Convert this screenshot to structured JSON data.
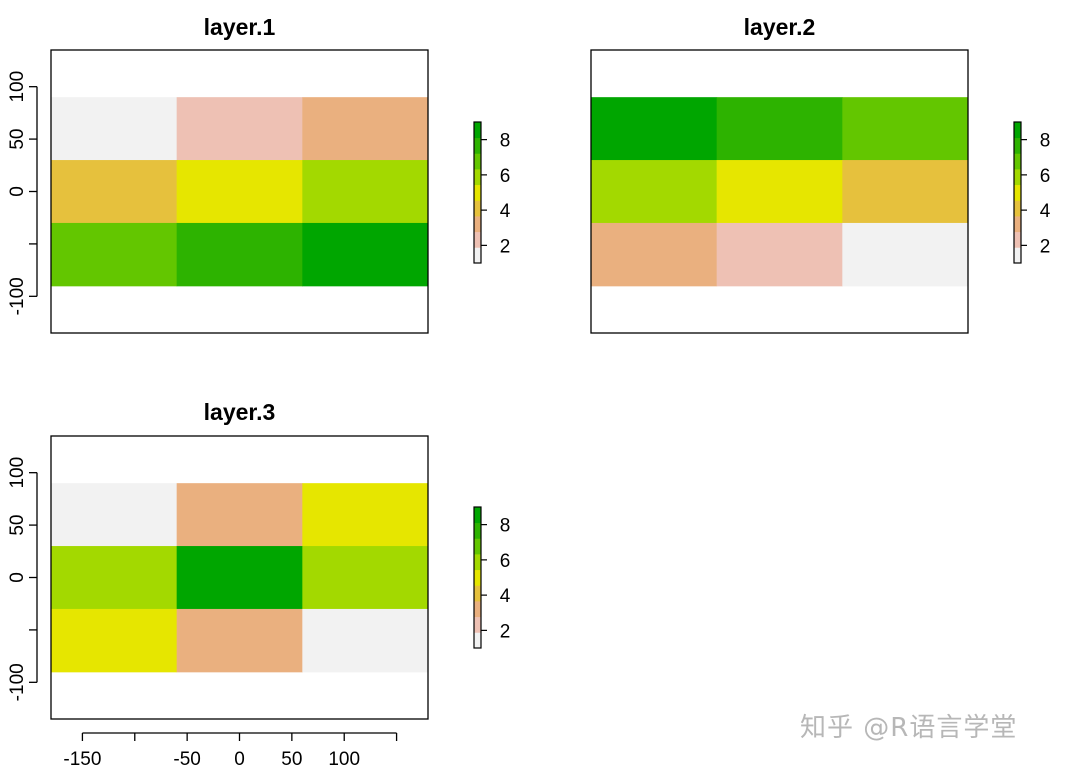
{
  "chart_data": [
    {
      "type": "heatmap",
      "title": "layer.1",
      "xlim": [
        -180,
        180
      ],
      "ylim": [
        -135,
        135
      ],
      "y_ticks": [
        -100,
        -50,
        0,
        50,
        100
      ],
      "y_tick_labels": [
        "-100",
        "",
        "0",
        "50",
        "100"
      ],
      "x_axis_drawn": false,
      "x_edges": [
        -180,
        -60,
        60,
        180
      ],
      "y_edges": [
        -90,
        -30,
        30,
        90
      ],
      "values": [
        [
          1,
          2,
          3
        ],
        [
          4,
          5,
          6
        ],
        [
          7,
          8,
          9
        ]
      ],
      "legend": {
        "ticks": [
          2,
          4,
          6,
          8
        ],
        "tick_labels": [
          "2",
          "4",
          "6",
          "8"
        ],
        "range": [
          1,
          9
        ]
      }
    },
    {
      "type": "heatmap",
      "title": "layer.2",
      "xlim": [
        -180,
        180
      ],
      "ylim": [
        -135,
        135
      ],
      "y_axis_drawn": false,
      "x_axis_drawn": false,
      "x_edges": [
        -180,
        -60,
        60,
        180
      ],
      "y_edges": [
        -90,
        -30,
        30,
        90
      ],
      "values": [
        [
          9,
          8,
          7
        ],
        [
          6,
          5,
          4
        ],
        [
          3,
          2,
          1
        ]
      ],
      "legend": {
        "ticks": [
          2,
          4,
          6,
          8
        ],
        "tick_labels": [
          "2",
          "4",
          "6",
          "8"
        ],
        "range": [
          1,
          9
        ]
      }
    },
    {
      "type": "heatmap",
      "title": "layer.3",
      "xlim": [
        -180,
        180
      ],
      "ylim": [
        -135,
        135
      ],
      "y_ticks": [
        -100,
        -50,
        0,
        50,
        100
      ],
      "y_tick_labels": [
        "-100",
        "",
        "0",
        "50",
        "100"
      ],
      "x_ticks": [
        -150,
        -100,
        -50,
        0,
        50,
        100,
        150
      ],
      "x_tick_labels": [
        "-150",
        "",
        "-50",
        "0",
        "50",
        "100",
        ""
      ],
      "x_edges": [
        -180,
        -60,
        60,
        180
      ],
      "y_edges": [
        -90,
        -30,
        30,
        90
      ],
      "values": [
        [
          1,
          3,
          5
        ],
        [
          6,
          9,
          6
        ],
        [
          5,
          3,
          1
        ]
      ],
      "legend": {
        "ticks": [
          2,
          4,
          6,
          8
        ],
        "tick_labels": [
          "2",
          "4",
          "6",
          "8"
        ],
        "range": [
          1,
          9
        ]
      }
    }
  ],
  "colors": {
    "palette": [
      "#f2f2f2",
      "#eec1b4",
      "#eab07f",
      "#e6c13d",
      "#e6e600",
      "#a3d900",
      "#63c600",
      "#2db300",
      "#00a600"
    ],
    "axis": "#000000",
    "watermark": "#b7b7b7"
  },
  "watermark": "知乎 @R语言学堂"
}
